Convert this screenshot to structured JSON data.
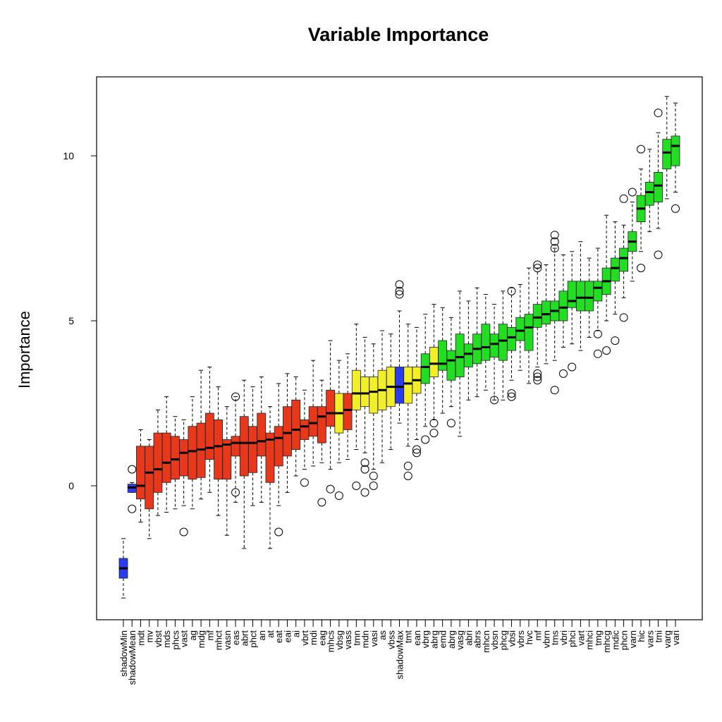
{
  "chart_data": {
    "type": "boxplot",
    "title": "Variable Importance",
    "ylabel": "Importance",
    "xlabel": "",
    "ylim": [
      -4,
      12
    ],
    "yticks": [
      0,
      5,
      10
    ],
    "grid": false,
    "legend": "none",
    "colors": {
      "shadow": "#2a3bf0",
      "rejected": "#e8381c",
      "tentative": "#f2ef2a",
      "confirmed": "#22dd22"
    },
    "variables": [
      {
        "name": "shadowMin",
        "status": "shadow",
        "wlo": -3.4,
        "q1": -2.8,
        "med": -2.5,
        "q3": -2.2,
        "whi": -1.6,
        "out": []
      },
      {
        "name": "shadowMean",
        "status": "shadow",
        "wlo": -0.2,
        "q1": -0.2,
        "med": -0.05,
        "q3": 0.05,
        "whi": 0.1,
        "out": [
          0.5,
          -0.7
        ]
      },
      {
        "name": "mdt",
        "status": "rejected",
        "wlo": -1.1,
        "q1": -0.4,
        "med": 0.0,
        "q3": 1.2,
        "whi": 1.7,
        "out": []
      },
      {
        "name": "mv",
        "status": "rejected",
        "wlo": -1.6,
        "q1": -0.7,
        "med": 0.4,
        "q3": 1.2,
        "whi": 1.4,
        "out": []
      },
      {
        "name": "vbst",
        "status": "rejected",
        "wlo": -0.9,
        "q1": -0.2,
        "med": 0.5,
        "q3": 1.6,
        "whi": 2.3,
        "out": []
      },
      {
        "name": "mds",
        "status": "rejected",
        "wlo": -0.8,
        "q1": 0.1,
        "med": 0.7,
        "q3": 1.6,
        "whi": 2.7,
        "out": []
      },
      {
        "name": "phcs",
        "status": "rejected",
        "wlo": -0.7,
        "q1": 0.2,
        "med": 0.8,
        "q3": 1.5,
        "whi": 2.1,
        "out": []
      },
      {
        "name": "vast",
        "status": "rejected",
        "wlo": -0.6,
        "q1": 0.3,
        "med": 1.0,
        "q3": 1.4,
        "whi": 2.0,
        "out": [
          -1.4
        ]
      },
      {
        "name": "ag",
        "status": "rejected",
        "wlo": -0.7,
        "q1": 0.2,
        "med": 1.05,
        "q3": 1.8,
        "whi": 2.7,
        "out": []
      },
      {
        "name": "mdg",
        "status": "rejected",
        "wlo": -0.4,
        "q1": 0.25,
        "med": 1.1,
        "q3": 1.9,
        "whi": 3.5,
        "out": []
      },
      {
        "name": "mf",
        "status": "rejected",
        "wlo": -0.2,
        "q1": 0.8,
        "med": 1.15,
        "q3": 2.2,
        "whi": 3.6,
        "out": []
      },
      {
        "name": "mhct",
        "status": "rejected",
        "wlo": -0.9,
        "q1": 0.2,
        "med": 1.2,
        "q3": 2.0,
        "whi": 3.0,
        "out": []
      },
      {
        "name": "vasn",
        "status": "rejected",
        "wlo": -1.5,
        "q1": 0.2,
        "med": 1.25,
        "q3": 1.4,
        "whi": 2.4,
        "out": []
      },
      {
        "name": "eas",
        "status": "rejected",
        "wlo": -0.5,
        "q1": 0.9,
        "med": 1.3,
        "q3": 1.5,
        "whi": 2.7,
        "out": [
          2.7,
          -0.2
        ]
      },
      {
        "name": "abrt",
        "status": "rejected",
        "wlo": -1.9,
        "q1": 0.3,
        "med": 1.3,
        "q3": 2.1,
        "whi": 3.2,
        "out": []
      },
      {
        "name": "phct",
        "status": "rejected",
        "wlo": -0.6,
        "q1": 0.4,
        "med": 1.3,
        "q3": 1.8,
        "whi": 3.0,
        "out": []
      },
      {
        "name": "an",
        "status": "rejected",
        "wlo": -0.5,
        "q1": 0.9,
        "med": 1.35,
        "q3": 2.2,
        "whi": 3.3,
        "out": []
      },
      {
        "name": "at",
        "status": "rejected",
        "wlo": -1.9,
        "q1": 0.1,
        "med": 1.4,
        "q3": 1.6,
        "whi": 2.4,
        "out": []
      },
      {
        "name": "eat",
        "status": "rejected",
        "wlo": -0.6,
        "q1": 0.6,
        "med": 1.45,
        "q3": 1.8,
        "whi": 3.1,
        "out": [
          -1.4
        ]
      },
      {
        "name": "eai",
        "status": "rejected",
        "wlo": -0.2,
        "q1": 0.9,
        "med": 1.6,
        "q3": 2.4,
        "whi": 3.4,
        "out": []
      },
      {
        "name": "ai",
        "status": "rejected",
        "wlo": 0.3,
        "q1": 1.1,
        "med": 1.7,
        "q3": 2.6,
        "whi": 3.3,
        "out": []
      },
      {
        "name": "vbrt",
        "status": "rejected",
        "wlo": 0.5,
        "q1": 1.4,
        "med": 1.8,
        "q3": 2.0,
        "whi": 2.9,
        "out": [
          0.1
        ]
      },
      {
        "name": "mdi",
        "status": "rejected",
        "wlo": 0.6,
        "q1": 1.5,
        "med": 1.9,
        "q3": 2.4,
        "whi": 3.8,
        "out": []
      },
      {
        "name": "eag",
        "status": "rejected",
        "wlo": 0.7,
        "q1": 1.3,
        "med": 2.1,
        "q3": 2.4,
        "whi": 3.2,
        "out": [
          -0.5
        ]
      },
      {
        "name": "mhcs",
        "status": "rejected",
        "wlo": 0.5,
        "q1": 1.8,
        "med": 2.2,
        "q3": 2.9,
        "whi": 4.4,
        "out": [
          -0.1
        ]
      },
      {
        "name": "vbsg",
        "status": "tentative",
        "wlo": 0.7,
        "q1": 1.6,
        "med": 2.2,
        "q3": 2.8,
        "whi": 3.8,
        "out": [
          -0.3
        ]
      },
      {
        "name": "vass",
        "status": "rejected",
        "wlo": 0.8,
        "q1": 1.7,
        "med": 2.3,
        "q3": 2.8,
        "whi": 4.0,
        "out": []
      },
      {
        "name": "tmn",
        "status": "tentative",
        "wlo": 1.1,
        "q1": 2.3,
        "med": 2.8,
        "q3": 3.5,
        "whi": 4.9,
        "out": [
          0.0
        ]
      },
      {
        "name": "mdn",
        "status": "tentative",
        "wlo": 1.0,
        "q1": 2.4,
        "med": 2.8,
        "q3": 3.3,
        "whi": 4.5,
        "out": [
          0.7,
          0.5,
          -0.2
        ]
      },
      {
        "name": "vasi",
        "status": "tentative",
        "wlo": 0.5,
        "q1": 2.2,
        "med": 2.85,
        "q3": 3.3,
        "whi": 4.3,
        "out": [
          0.3,
          0.0
        ]
      },
      {
        "name": "as",
        "status": "tentative",
        "wlo": 0.7,
        "q1": 2.3,
        "med": 2.9,
        "q3": 3.5,
        "whi": 4.7,
        "out": []
      },
      {
        "name": "vbss",
        "status": "tentative",
        "wlo": 1.1,
        "q1": 2.4,
        "med": 3.0,
        "q3": 3.6,
        "whi": 4.6,
        "out": []
      },
      {
        "name": "shadowMax",
        "status": "shadow",
        "wlo": 1.9,
        "q1": 2.5,
        "med": 3.0,
        "q3": 3.6,
        "whi": 5.3,
        "out": [
          6.1,
          5.9,
          5.8
        ]
      },
      {
        "name": "tmt",
        "status": "tentative",
        "wlo": 1.2,
        "q1": 2.5,
        "med": 3.1,
        "q3": 3.6,
        "whi": 4.9,
        "out": [
          0.6,
          0.3
        ]
      },
      {
        "name": "ean",
        "status": "tentative",
        "wlo": 1.4,
        "q1": 2.8,
        "med": 3.2,
        "q3": 3.6,
        "whi": 4.8,
        "out": [
          1.1,
          1.0
        ]
      },
      {
        "name": "vbrg",
        "status": "confirmed",
        "wlo": 1.8,
        "q1": 3.1,
        "med": 3.6,
        "q3": 4.0,
        "whi": 5.2,
        "out": [
          1.4
        ]
      },
      {
        "name": "abrg",
        "status": "tentative",
        "wlo": 2.0,
        "q1": 3.3,
        "med": 3.7,
        "q3": 4.2,
        "whi": 5.5,
        "out": [
          1.9,
          1.6
        ]
      },
      {
        "name": "emd",
        "status": "confirmed",
        "wlo": 2.2,
        "q1": 3.5,
        "med": 3.7,
        "q3": 4.4,
        "whi": 5.4,
        "out": []
      },
      {
        "name": "abrg",
        "status": "confirmed",
        "wlo": 2.4,
        "q1": 3.2,
        "med": 3.8,
        "q3": 4.1,
        "whi": 5.1,
        "out": [
          1.9
        ]
      },
      {
        "name": "vasg",
        "status": "confirmed",
        "wlo": 1.5,
        "q1": 3.3,
        "med": 3.9,
        "q3": 4.6,
        "whi": 5.9,
        "out": []
      },
      {
        "name": "abri",
        "status": "confirmed",
        "wlo": 2.6,
        "q1": 3.6,
        "med": 4.0,
        "q3": 4.3,
        "whi": 5.6,
        "out": []
      },
      {
        "name": "abrs",
        "status": "confirmed",
        "wlo": 2.7,
        "q1": 3.7,
        "med": 4.15,
        "q3": 4.6,
        "whi": 6.0,
        "out": []
      },
      {
        "name": "mhcn",
        "status": "confirmed",
        "wlo": 2.9,
        "q1": 3.8,
        "med": 4.2,
        "q3": 4.9,
        "whi": 5.8,
        "out": []
      },
      {
        "name": "vbsn",
        "status": "confirmed",
        "wlo": 2.6,
        "q1": 3.9,
        "med": 4.3,
        "q3": 4.6,
        "whi": 5.5,
        "out": [
          2.6
        ]
      },
      {
        "name": "phcg",
        "status": "confirmed",
        "wlo": 2.6,
        "q1": 3.8,
        "med": 4.4,
        "q3": 4.9,
        "whi": 5.9,
        "out": []
      },
      {
        "name": "vbsi",
        "status": "confirmed",
        "wlo": 3.2,
        "q1": 4.1,
        "med": 4.5,
        "q3": 4.8,
        "whi": 6.0,
        "out": [
          5.9,
          2.8,
          2.7
        ]
      },
      {
        "name": "vbrs",
        "status": "confirmed",
        "wlo": 3.5,
        "q1": 4.4,
        "med": 4.7,
        "q3": 5.1,
        "whi": 6.1,
        "out": []
      },
      {
        "name": "hvc",
        "status": "confirmed",
        "wlo": 3.1,
        "q1": 4.1,
        "med": 4.8,
        "q3": 5.2,
        "whi": 6.6,
        "out": []
      },
      {
        "name": "mf",
        "status": "confirmed",
        "wlo": 3.6,
        "q1": 4.8,
        "med": 5.1,
        "q3": 5.5,
        "whi": 6.6,
        "out": [
          6.7,
          6.6,
          3.4,
          3.3,
          3.2
        ]
      },
      {
        "name": "vbrn",
        "status": "confirmed",
        "wlo": 3.7,
        "q1": 4.9,
        "med": 5.2,
        "q3": 5.6,
        "whi": 6.7,
        "out": []
      },
      {
        "name": "tms",
        "status": "confirmed",
        "wlo": 3.8,
        "q1": 5.0,
        "med": 5.3,
        "q3": 5.6,
        "whi": 7.2,
        "out": [
          7.6,
          7.4,
          7.2,
          2.9
        ]
      },
      {
        "name": "vbri",
        "status": "confirmed",
        "wlo": 4.2,
        "q1": 5.0,
        "med": 5.4,
        "q3": 5.9,
        "whi": 7.0,
        "out": [
          3.4
        ]
      },
      {
        "name": "phci",
        "status": "confirmed",
        "wlo": 4.3,
        "q1": 5.4,
        "med": 5.6,
        "q3": 6.2,
        "whi": 7.1,
        "out": [
          3.6
        ]
      },
      {
        "name": "vart",
        "status": "confirmed",
        "wlo": 4.1,
        "q1": 5.3,
        "med": 5.7,
        "q3": 6.2,
        "whi": 7.4,
        "out": []
      },
      {
        "name": "mhci",
        "status": "confirmed",
        "wlo": 4.5,
        "q1": 5.3,
        "med": 5.7,
        "q3": 6.2,
        "whi": 6.9,
        "out": []
      },
      {
        "name": "tmg",
        "status": "confirmed",
        "wlo": 4.7,
        "q1": 5.6,
        "med": 6.0,
        "q3": 6.2,
        "whi": 7.2,
        "out": [
          4.6,
          4.0
        ]
      },
      {
        "name": "mhcg",
        "status": "confirmed",
        "wlo": 5.0,
        "q1": 5.8,
        "med": 6.2,
        "q3": 6.6,
        "whi": 8.2,
        "out": [
          4.1
        ]
      },
      {
        "name": "mdic",
        "status": "confirmed",
        "wlo": 5.2,
        "q1": 6.2,
        "med": 6.6,
        "q3": 6.9,
        "whi": 8.0,
        "out": [
          4.4
        ]
      },
      {
        "name": "phcn",
        "status": "confirmed",
        "wlo": 5.7,
        "q1": 6.5,
        "med": 6.9,
        "q3": 7.2,
        "whi": 7.9,
        "out": [
          8.7,
          5.1
        ]
      },
      {
        "name": "varn",
        "status": "confirmed",
        "wlo": 6.2,
        "q1": 7.1,
        "med": 7.4,
        "q3": 7.7,
        "whi": 8.6,
        "out": [
          8.9
        ]
      },
      {
        "name": "hic",
        "status": "confirmed",
        "wlo": 7.1,
        "q1": 8.0,
        "med": 8.4,
        "q3": 8.8,
        "whi": 9.6,
        "out": [
          10.2,
          6.6
        ]
      },
      {
        "name": "vars",
        "status": "confirmed",
        "wlo": 7.7,
        "q1": 8.5,
        "med": 8.9,
        "q3": 9.2,
        "whi": 10.2,
        "out": []
      },
      {
        "name": "tmi",
        "status": "confirmed",
        "wlo": 7.8,
        "q1": 8.6,
        "med": 9.1,
        "q3": 9.5,
        "whi": 10.7,
        "out": [
          11.3,
          7.0
        ]
      },
      {
        "name": "varg",
        "status": "confirmed",
        "wlo": 8.7,
        "q1": 9.6,
        "med": 10.1,
        "q3": 10.5,
        "whi": 11.8,
        "out": []
      },
      {
        "name": "vari",
        "status": "confirmed",
        "wlo": 8.9,
        "q1": 9.7,
        "med": 10.3,
        "q3": 10.6,
        "whi": 11.6,
        "out": [
          8.4
        ]
      }
    ]
  }
}
